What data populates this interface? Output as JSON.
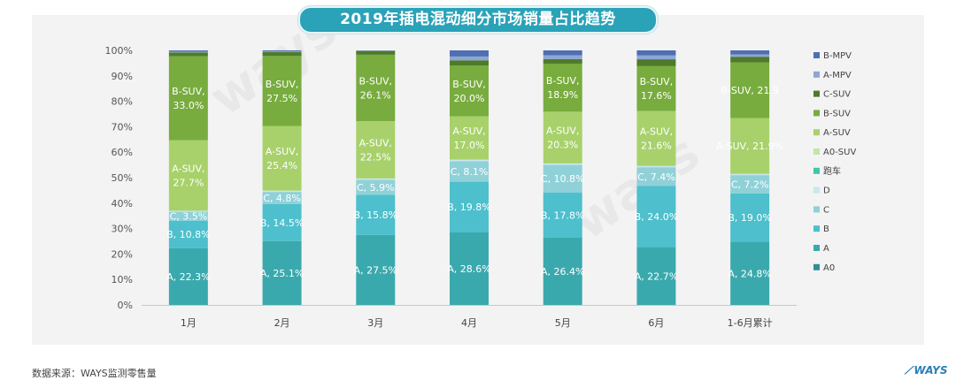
{
  "title": "2019年插电混动细分市场销量占比趋势",
  "source": "数据来源：WAYS监测零售量",
  "logo": "WAYS",
  "watermark": "ways",
  "chart_data": {
    "type": "bar",
    "stacked": true,
    "ylim": [
      0,
      100
    ],
    "yticks": [
      "0%",
      "10%",
      "20%",
      "30%",
      "40%",
      "50%",
      "60%",
      "70%",
      "80%",
      "90%",
      "100%"
    ],
    "categories": [
      "1月",
      "2月",
      "3月",
      "4月",
      "5月",
      "6月",
      "1-6月累计"
    ],
    "legend_position": "right",
    "series": [
      {
        "name": "A0",
        "color": "#2f8f98",
        "values": [
          0,
          0,
          0,
          0,
          0,
          0,
          0
        ],
        "labels": [
          "",
          "",
          "",
          "",
          "",
          "",
          ""
        ]
      },
      {
        "name": "A",
        "color": "#3aa9ad",
        "values": [
          22.3,
          25.1,
          27.5,
          28.6,
          26.4,
          22.7,
          24.8
        ],
        "labels": [
          "A, 22.3%",
          "A, 25.1%",
          "A, 27.5%",
          "A, 28.6%",
          "A, 26.4%",
          "A, 22.7%",
          "A, 24.8%"
        ]
      },
      {
        "name": "B",
        "color": "#4ebfcc",
        "values": [
          10.8,
          14.5,
          15.8,
          19.8,
          17.8,
          24.0,
          19.0
        ],
        "labels": [
          "B, 10.8%",
          "B, 14.5%",
          "B, 15.8%",
          "B, 19.8%",
          "B, 17.8%",
          "B, 24.0%",
          "B, 19.0%"
        ]
      },
      {
        "name": "C",
        "color": "#90d1d8",
        "values": [
          3.5,
          4.8,
          5.9,
          8.1,
          10.8,
          7.4,
          7.2
        ],
        "labels": [
          "C, 3.5%",
          "C, 4.8%",
          "C, 5.9%",
          "C, 8.1%",
          "C, 10.8%",
          "C, 7.4%",
          "C, 7.2%"
        ]
      },
      {
        "name": "D",
        "color": "#c9e7ec",
        "values": [
          0.4,
          0.5,
          0.5,
          0.6,
          0.6,
          0.5,
          0.5
        ],
        "labels": [
          "",
          "",
          "",
          "",
          "",
          "",
          ""
        ]
      },
      {
        "name": "跑车",
        "color": "#3fc7a8",
        "values": [
          0,
          0,
          0,
          0,
          0,
          0,
          0
        ],
        "labels": [
          "",
          "",
          "",
          "",
          "",
          "",
          ""
        ]
      },
      {
        "name": "A0-SUV",
        "color": "#c3e6a8",
        "values": [
          0,
          0,
          0,
          0,
          0,
          0,
          0
        ],
        "labels": [
          "",
          "",
          "",
          "",
          "",
          "",
          ""
        ]
      },
      {
        "name": "A-SUV",
        "color": "#a8d16b",
        "values": [
          27.7,
          25.4,
          22.5,
          17.0,
          20.3,
          21.6,
          21.9
        ],
        "labels": [
          "A-SUV,\n27.7%",
          "A-SUV,\n25.4%",
          "A-SUV,\n22.5%",
          "A-SUV,\n17.0%",
          "A-SUV,\n20.3%",
          "A-SUV,\n21.6%",
          "A-SUV, 21.9%"
        ]
      },
      {
        "name": "B-SUV",
        "color": "#78ac3e",
        "values": [
          33.0,
          27.5,
          26.1,
          20.0,
          18.9,
          17.6,
          21.9
        ],
        "labels": [
          "B-SUV,\n33.0%",
          "B-SUV,\n27.5%",
          "B-SUV,\n26.1%",
          "B-SUV,\n20.0%",
          "B-SUV,\n18.9%",
          "B-SUV,\n17.6%",
          "B-SUV, 21.9"
        ]
      },
      {
        "name": "C-SUV",
        "color": "#4f7a2a",
        "values": [
          1.5,
          1.5,
          1.5,
          2.0,
          1.8,
          2.7,
          2.2
        ],
        "labels": [
          "",
          "",
          "",
          "",
          "",
          "",
          ""
        ]
      },
      {
        "name": "A-MPV",
        "color": "#8ea6d6",
        "values": [
          0.3,
          0.3,
          0.2,
          1.5,
          1.5,
          1.5,
          0.9
        ],
        "labels": [
          "",
          "",
          "",
          "",
          "",
          "",
          ""
        ]
      },
      {
        "name": "B-MPV",
        "color": "#4e6fb0",
        "values": [
          0.5,
          0.4,
          0,
          2.4,
          1.9,
          2.0,
          1.6
        ],
        "labels": [
          "",
          "",
          "",
          "",
          "",
          "",
          ""
        ]
      }
    ]
  }
}
